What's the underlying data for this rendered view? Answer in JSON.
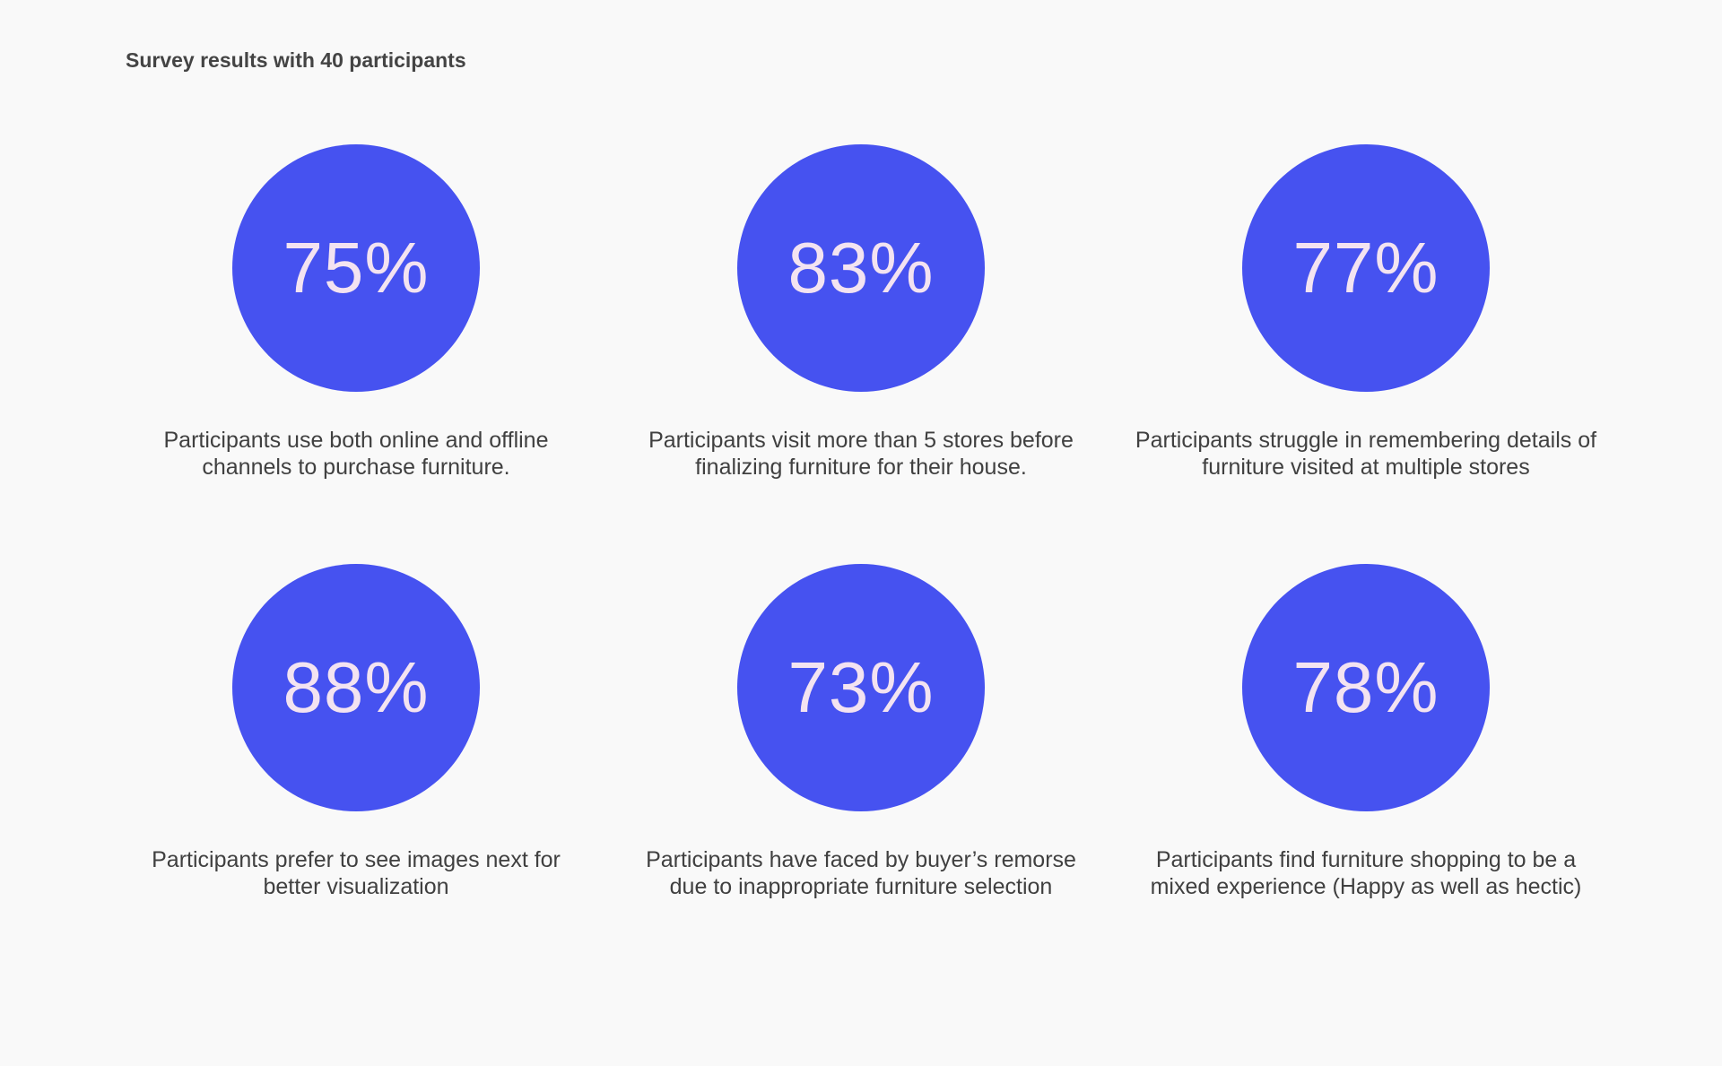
{
  "page": {
    "title": "Survey results with 40 participants"
  },
  "colors": {
    "circle": "#4652f0",
    "value_text": "#f3e3f1",
    "background": "#f9f9f9"
  },
  "stats": [
    {
      "value": "75%",
      "line1": "Participants use both online and offline",
      "line2": "channels to purchase furniture."
    },
    {
      "value": "83%",
      "line1": "Participants visit more than 5 stores before",
      "line2": "finalizing furniture for their house."
    },
    {
      "value": "77%",
      "line1": "Participants struggle in remembering details of",
      "line2": "furniture visited at multiple stores"
    },
    {
      "value": "88%",
      "line1": "Participants prefer to see images next for",
      "line2": "better visualization"
    },
    {
      "value": "73%",
      "line1": "Participants have faced by buyer’s remorse",
      "line2": "due to inappropriate furniture selection"
    },
    {
      "value": "78%",
      "line1": "Participants find furniture shopping to be a",
      "line2": "mixed experience (Happy as well as hectic)"
    }
  ]
}
